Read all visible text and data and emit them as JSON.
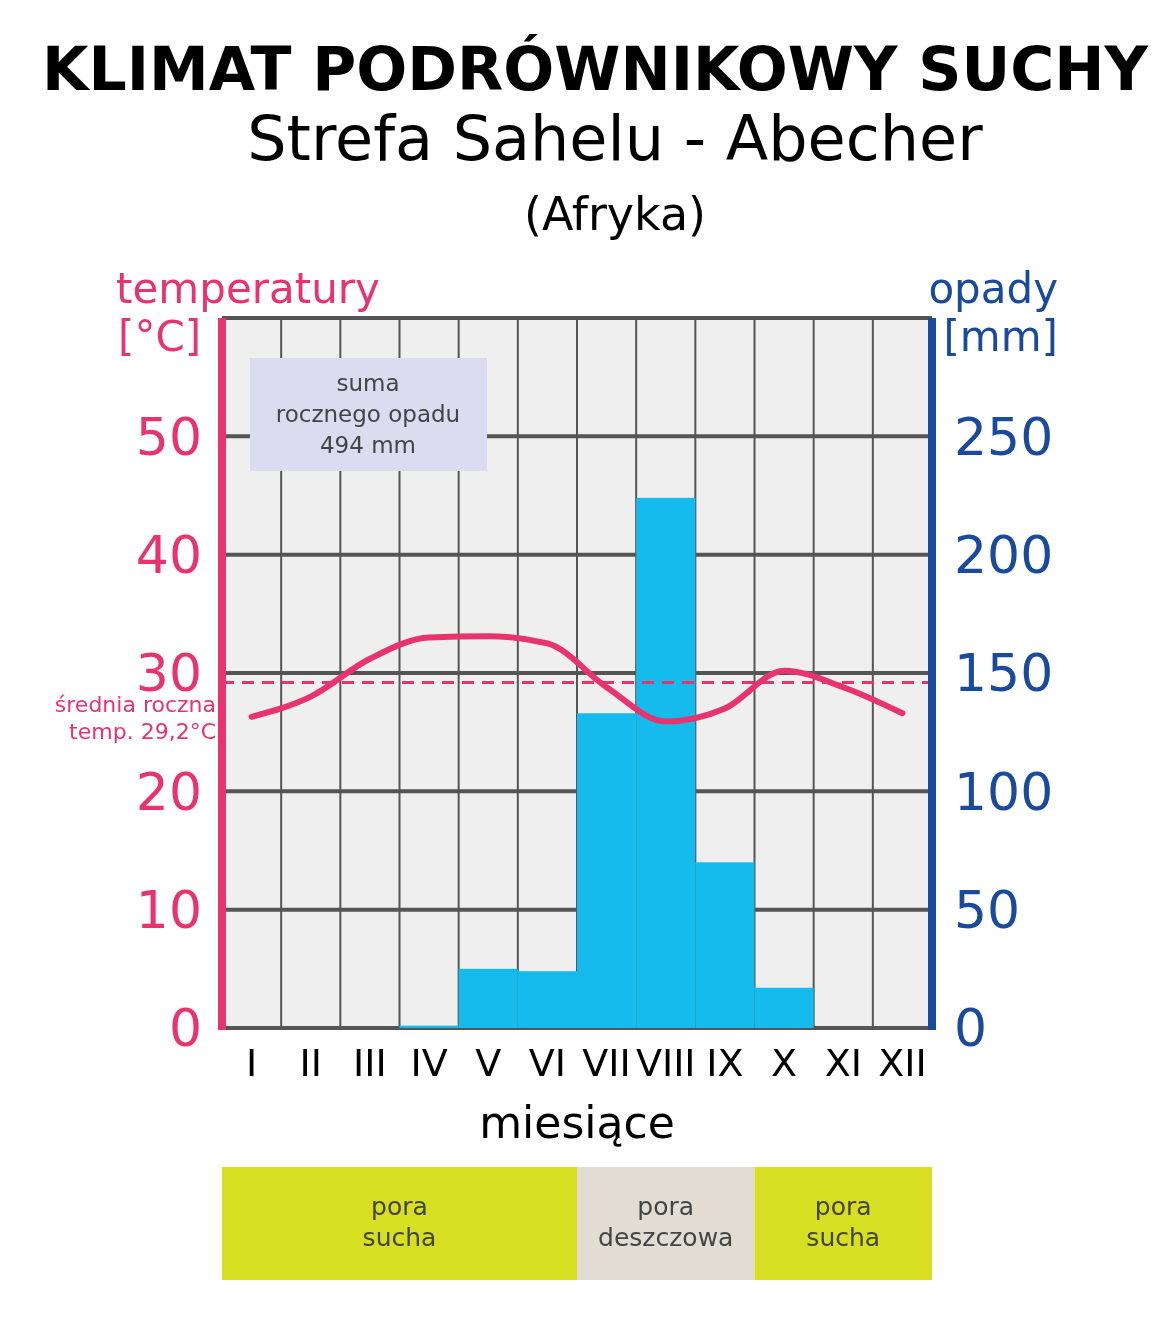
{
  "chart_data": {
    "type": "bar",
    "title": "KLIMAT PODRÓWNIKOWY SUCHY",
    "subtitle": "Strefa Sahelu - Abecher\n(Afryka)",
    "xlabel": "miesiące",
    "ylabel": "temperatury\n[°C]",
    "y2label": "opady\n[mm]",
    "categories": [
      "I",
      "II",
      "III",
      "IV",
      "V",
      "VI",
      "VII",
      "VIII",
      "IX",
      "X",
      "XI",
      "XII"
    ],
    "series": [
      {
        "axis": "y2",
        "color": "#14bbec",
        "values": [
          0,
          0,
          0,
          1,
          25,
          24,
          133,
          224,
          70,
          17,
          0,
          0
        ]
      },
      {
        "type": "line",
        "axis": "y",
        "color": "#e8336f",
        "values": [
          26.3,
          28,
          31.2,
          33,
          33.1,
          32.5,
          28.8,
          25.9,
          27,
          30.2,
          28.8,
          26.6
        ]
      }
    ],
    "ylim": [
      0,
      60
    ],
    "yticks": [
      0,
      10,
      20,
      30,
      40,
      50
    ],
    "y2lim": [
      0,
      300
    ],
    "y2ticks": [
      0,
      50,
      100,
      150,
      200,
      250
    ],
    "grid": true,
    "marker": "none",
    "line_style": "solid",
    "ref_lines": [
      {
        "axis": "y",
        "value": 29.2,
        "label": "średnia roczna\ntemp. 29,2°C",
        "color": "#e8336f",
        "line_style": "dashed"
      }
    ],
    "annotations": [
      "suma\nrocznego opadu\n494 mm",
      "pora\nsucha",
      "pora\ndeszczowa",
      "pora\nsucha"
    ]
  }
}
